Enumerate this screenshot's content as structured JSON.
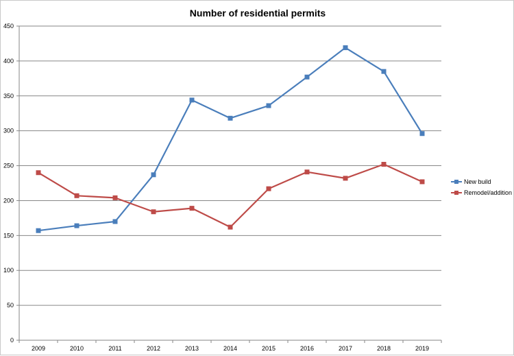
{
  "chart_data": {
    "type": "line",
    "title": "Number of residential permits",
    "xlabel": "",
    "ylabel": "",
    "categories": [
      "2009",
      "2010",
      "2011",
      "2012",
      "2013",
      "2014",
      "2015",
      "2016",
      "2017",
      "2018",
      "2019"
    ],
    "ylim": [
      0,
      450
    ],
    "yticks": [
      0,
      50,
      100,
      150,
      200,
      250,
      300,
      350,
      400,
      450
    ],
    "grid": true,
    "legend_position": "right",
    "series": [
      {
        "name": "New build",
        "color": "#4a7ebb",
        "marker": "square",
        "values": [
          157,
          164,
          170,
          237,
          344,
          318,
          336,
          377,
          419,
          385,
          296
        ]
      },
      {
        "name": "Remodel/addition",
        "color": "#be4b48",
        "marker": "square",
        "values": [
          240,
          207,
          204,
          184,
          189,
          162,
          217,
          241,
          232,
          252,
          227
        ]
      }
    ]
  }
}
